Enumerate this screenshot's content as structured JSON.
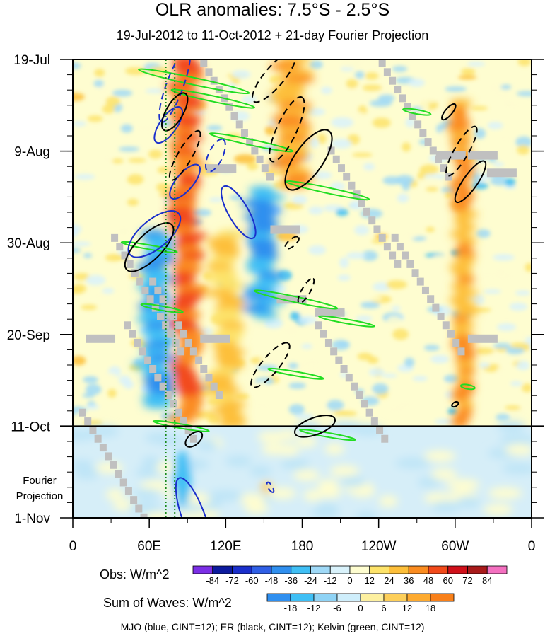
{
  "chart_data": {
    "type": "heatmap",
    "title": "OLR anomalies: 7.5°S - 2.5°S",
    "subtitle": "19-Jul-2012 to 11-Oct-2012 + 21-day Fourier Projection",
    "y_tick_labels": [
      "19-Jul",
      "9-Aug",
      "30-Aug",
      "20-Sep",
      "11-Oct",
      "1-Nov"
    ],
    "y_days": [
      0,
      21,
      42,
      63,
      84,
      105
    ],
    "x_tick_labels": [
      "0",
      "60E",
      "120E",
      "180",
      "120W",
      "60W",
      "0"
    ],
    "x_lon": [
      0,
      60,
      120,
      180,
      240,
      300,
      360
    ],
    "projection_label": [
      "Fourier",
      "Projection"
    ],
    "observed_end_day": 84,
    "obs_colorbar": {
      "label": "Obs: W/m^2",
      "levels": [
        "-84",
        "-72",
        "-60",
        "-48",
        "-36",
        "-24",
        "-12",
        "0",
        "12",
        "24",
        "36",
        "48",
        "60",
        "72",
        "84"
      ],
      "colors": [
        "#7b2ee6",
        "#0c1a9e",
        "#1a2fcc",
        "#2f5fe6",
        "#2f8fef",
        "#3fbff5",
        "#9fd9f7",
        "#d9f2fb",
        "#fefdd0",
        "#fde36a",
        "#fdbf3a",
        "#fb8c20",
        "#f24a1a",
        "#d0101a",
        "#a81a1a",
        "#f470c0"
      ]
    },
    "waves_colorbar": {
      "label": "Sum of Waves: W/m^2",
      "levels": [
        "-18",
        "-12",
        "-6",
        "0",
        "6",
        "12",
        "18"
      ],
      "colors": [
        "#2f8fef",
        "#3fbff5",
        "#8fd3f5",
        "#cfeefb",
        "#fdf0a0",
        "#fdcf5a",
        "#fdaa30",
        "#f8801a"
      ]
    },
    "contour_note": "MJO (blue, CINT=12); ER (black, CINT=12); Kelvin (green, CINT=12)",
    "colors": {
      "mjo": "#1a2fcc",
      "er": "#000000",
      "kelvin": "#22dd22",
      "missing": "#c0c0c0",
      "projection_line": "#1a8a1a"
    },
    "features": {
      "positive_bands": [
        {
          "lon_start": 80,
          "lon_end": 98,
          "day_start": 0,
          "day_end": 84,
          "level": 48
        },
        {
          "lon_start": 160,
          "lon_end": 182,
          "day_start": 0,
          "day_end": 30,
          "level": 36
        },
        {
          "lon_start": 300,
          "lon_end": 312,
          "day_start": 10,
          "day_end": 84,
          "level": 36
        },
        {
          "lon_start": 110,
          "lon_end": 130,
          "day_start": 40,
          "day_end": 84,
          "level": 24
        }
      ],
      "negative_bands": [
        {
          "lon_start": 55,
          "lon_end": 75,
          "day_start": 40,
          "day_end": 80,
          "level": -36
        },
        {
          "lon_start": 140,
          "lon_end": 160,
          "day_start": 30,
          "day_end": 60,
          "level": -36
        },
        {
          "lon_start": 80,
          "lon_end": 95,
          "day_start": 90,
          "day_end": 103,
          "level": -18
        }
      ]
    }
  }
}
